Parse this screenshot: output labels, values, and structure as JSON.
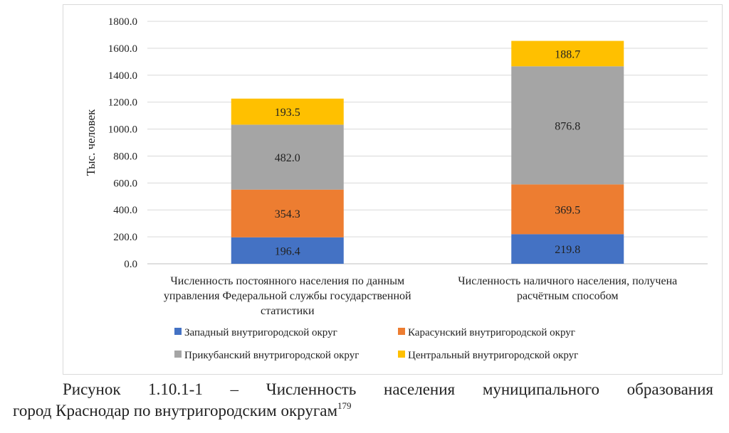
{
  "chart_data": {
    "type": "bar",
    "stacked": true,
    "ylabel": "Тыс. человек",
    "ylim": [
      0,
      1800
    ],
    "yticks": [
      "0.0",
      "200.0",
      "400.0",
      "600.0",
      "800.0",
      "1000.0",
      "1200.0",
      "1400.0",
      "1600.0",
      "1800.0"
    ],
    "grid": true,
    "legend_position": "bottom",
    "categories": [
      [
        "Численность постоянного населения по данным",
        "управления Федеральной службы государственной",
        "статистики"
      ],
      [
        "Численность наличного населения, получена",
        "расчётным способом"
      ]
    ],
    "series": [
      {
        "name": "Западный внутригородской округ",
        "color": "#4472c4",
        "values": [
          196.4,
          219.8
        ],
        "labels": [
          "196.4",
          "219.8"
        ]
      },
      {
        "name": "Карасунский внутригородской округ",
        "color": "#ed7d31",
        "values": [
          354.3,
          369.5
        ],
        "labels": [
          "354.3",
          "369.5"
        ]
      },
      {
        "name": "Прикубанский внутригородской округ",
        "color": "#a5a5a5",
        "values": [
          482.0,
          876.8
        ],
        "labels": [
          "482.0",
          "876.8"
        ]
      },
      {
        "name": "Центральный внутригородской округ",
        "color": "#ffc000",
        "values": [
          193.5,
          188.7
        ],
        "labels": [
          "193.5",
          "188.7"
        ]
      }
    ]
  },
  "caption": {
    "line1": "Рисунок 1.10.1-1 – Численность населения муниципального образования",
    "line2": "город Краснодар по внутригородским округам",
    "footnote": "179"
  }
}
